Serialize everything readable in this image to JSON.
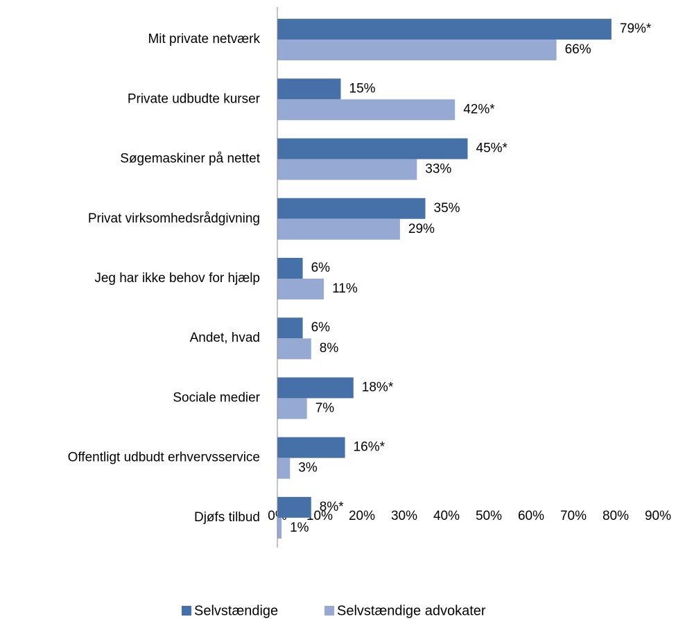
{
  "chart_data": {
    "type": "bar",
    "orientation": "horizontal",
    "categories": [
      "Mit private netværk",
      "Private udbudte kurser",
      "Søgemaskiner på nettet",
      "Privat virksomhedsrådgivning",
      "Jeg har ikke behov for hjælp",
      "Andet, hvad",
      "Sociale medier",
      "Offentligt udbudt erhvervsservice",
      "Djøfs tilbud"
    ],
    "series": [
      {
        "name": "Selvstændige",
        "color": "#4671a8",
        "values": [
          79,
          15,
          45,
          35,
          6,
          6,
          18,
          16,
          8
        ],
        "value_labels": [
          "79%*",
          "15%",
          "45%*",
          "35%",
          "6%",
          "6%",
          "18%*",
          "16%*",
          "8%*"
        ]
      },
      {
        "name": "Selvstændige advokater",
        "color": "#95a9d3",
        "values": [
          66,
          42,
          33,
          29,
          11,
          8,
          7,
          3,
          1
        ],
        "value_labels": [
          "66%",
          "42%*",
          "33%",
          "29%",
          "11%",
          "8%",
          "7%",
          "3%",
          "1%"
        ]
      }
    ],
    "xlim": [
      0,
      90
    ],
    "xticks": [
      {
        "value": 0,
        "label": "0%"
      },
      {
        "value": 10,
        "label": "10%"
      },
      {
        "value": 20,
        "label": "20%"
      },
      {
        "value": 30,
        "label": "30%"
      },
      {
        "value": 40,
        "label": "40%"
      },
      {
        "value": 50,
        "label": "50%"
      },
      {
        "value": 60,
        "label": "60%"
      },
      {
        "value": 70,
        "label": "70%"
      },
      {
        "value": 80,
        "label": "80%"
      },
      {
        "value": 90,
        "label": "90%"
      }
    ],
    "legend": "bottom"
  }
}
